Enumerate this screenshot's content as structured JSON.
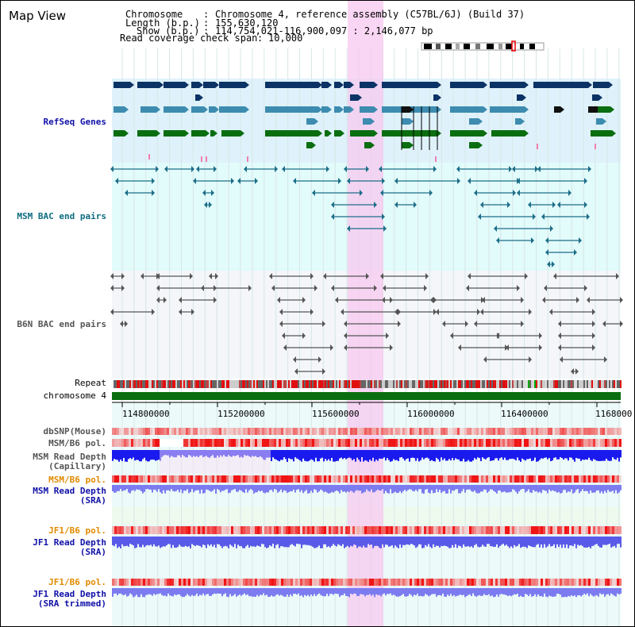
{
  "title": "Map View",
  "header": {
    "chromosome_label": "Chromosome",
    "chromosome_value": "Chromosome 4, reference assembly (C57BL/6J) (Build 37)",
    "length_label": "Length (b.p.)",
    "length_value": "155,630,120",
    "show_label": "Show (b.p.)",
    "show_value": "114,754,021-116,900,097 : 2,146,077 bp",
    "coverage_label": "Read coverage check span",
    "coverage_value": "10,000"
  },
  "tracks": {
    "refseq": "RefSeq Genes",
    "msm_bac": "MSM BAC end pairs",
    "b6n_bac": "B6N BAC end pairs",
    "repeat": "Repeat",
    "chromosome": "chromosome 4",
    "dbsnp": "dbSNP(Mouse)",
    "msm_b6_pol_1": "MSM/B6 pol.",
    "msm_read_depth_cap_1": "MSM Read Depth",
    "msm_read_depth_cap_2": "(Capillary)",
    "msm_b6_pol_2": "MSM/B6 pol.",
    "msm_read_depth_sra_1": "MSM Read Depth",
    "msm_read_depth_sra_2": "(SRA)",
    "jf1_b6_pol_1": "JF1/B6 pol.",
    "jf1_read_depth_sra_1": "JF1 Read Depth",
    "jf1_read_depth_sra_2": "(SRA)",
    "jf1_b6_pol_2": "JF1/B6 pol.",
    "jf1_read_depth_trim_1": "JF1 Read Depth",
    "jf1_read_depth_trim_2": "(SRA trimmed)"
  },
  "axis_ticks": [
    "114800000",
    "115200000",
    "115600000",
    "116000000",
    "116400000",
    "1168000"
  ],
  "colors": {
    "refseq_bg": "#dff2fb",
    "msm_bg": "#e2fbfb",
    "b6n_bg": "#f4f6f9",
    "highlight": "#f7c8ef",
    "gene_dark": "#0c3366",
    "gene_mid": "#3d8cb0",
    "gene_green": "#0a6e10",
    "msm_line": "#1c6e88",
    "b6n_line": "#555555",
    "depth_blue": "#1a1aee",
    "depth_light": "#7c7cf0",
    "label_blue": "#1010a8",
    "label_orange": "#e08a00",
    "label_teal": "#0d6c80"
  }
}
